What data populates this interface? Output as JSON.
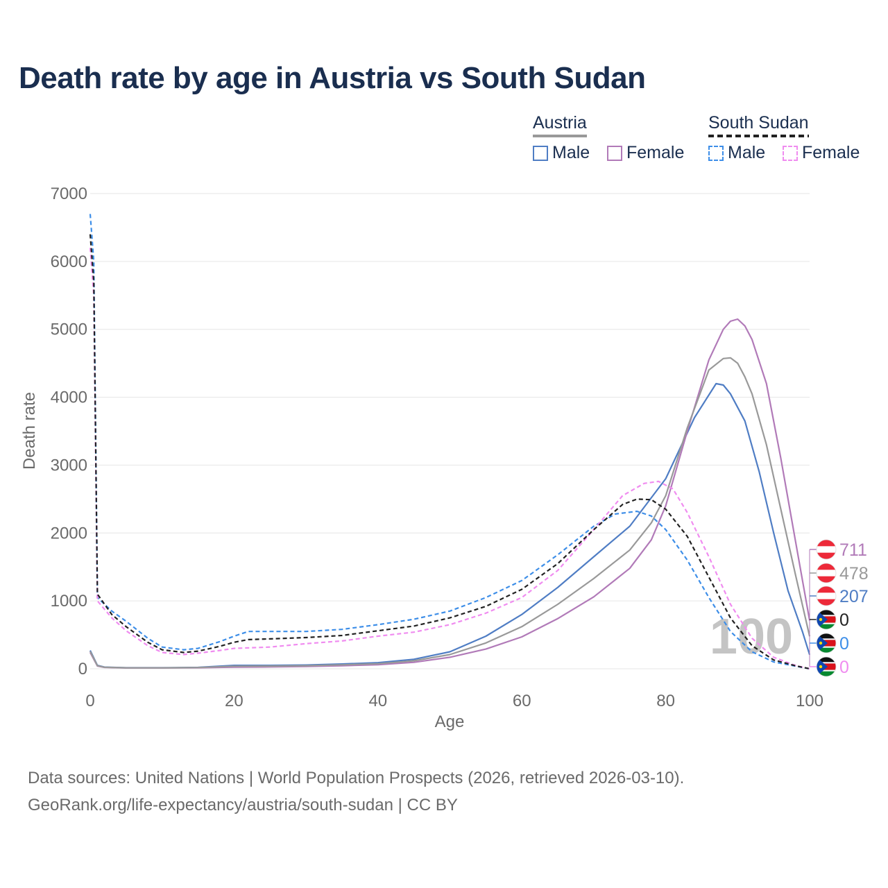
{
  "title": "Death rate by age in Austria vs South Sudan",
  "legend": {
    "austria_title": "Austria",
    "south_sudan_title": "South Sudan",
    "male_label": "Male",
    "female_label": "Female"
  },
  "watermark_year": "100",
  "end_labels": [
    "711",
    "478",
    "207",
    "0",
    "0",
    "0"
  ],
  "source": {
    "line1": "Data sources: United Nations | World Population Prospects (2026, retrieved 2026-03-10).",
    "line2": "GeoRank.org/life-expectancy/austria/south-sudan | CC BY"
  },
  "colors": {
    "male": "#4f7dc4",
    "female": "#b17ab8",
    "austria_total": "#999999",
    "ss_male": "#3d8ee8",
    "ss_female": "#f08cf0",
    "ss_total": "#222222",
    "title": "#1a2e4f"
  },
  "chart_data": {
    "type": "line",
    "title": "Death rate by age in Austria vs South Sudan",
    "xlabel": "Age",
    "ylabel": "Death rate",
    "xlim": [
      0,
      100
    ],
    "ylim": [
      0,
      7000
    ],
    "xticks": [
      0,
      20,
      40,
      60,
      80,
      100
    ],
    "yticks": [
      0,
      1000,
      2000,
      3000,
      4000,
      5000,
      6000,
      7000
    ],
    "grid": true,
    "series": [
      {
        "name": "Austria Male",
        "style": "solid",
        "color_key": "male",
        "points": [
          [
            0,
            270
          ],
          [
            1,
            50
          ],
          [
            2,
            25
          ],
          [
            5,
            15
          ],
          [
            10,
            15
          ],
          [
            15,
            20
          ],
          [
            20,
            50
          ],
          [
            25,
            50
          ],
          [
            30,
            55
          ],
          [
            35,
            70
          ],
          [
            40,
            90
          ],
          [
            45,
            140
          ],
          [
            50,
            250
          ],
          [
            55,
            480
          ],
          [
            60,
            800
          ],
          [
            65,
            1200
          ],
          [
            70,
            1650
          ],
          [
            75,
            2100
          ],
          [
            80,
            2800
          ],
          [
            84,
            3700
          ],
          [
            87,
            4200
          ],
          [
            88,
            4180
          ],
          [
            89,
            4050
          ],
          [
            91,
            3650
          ],
          [
            93,
            2900
          ],
          [
            95,
            2000
          ],
          [
            97,
            1150
          ],
          [
            99,
            550
          ],
          [
            100,
            207
          ]
        ]
      },
      {
        "name": "Austria Female",
        "style": "solid",
        "color_key": "female",
        "points": [
          [
            0,
            240
          ],
          [
            1,
            40
          ],
          [
            2,
            20
          ],
          [
            5,
            12
          ],
          [
            10,
            12
          ],
          [
            15,
            15
          ],
          [
            20,
            25
          ],
          [
            25,
            28
          ],
          [
            30,
            35
          ],
          [
            35,
            45
          ],
          [
            40,
            60
          ],
          [
            45,
            95
          ],
          [
            50,
            170
          ],
          [
            55,
            290
          ],
          [
            60,
            470
          ],
          [
            65,
            740
          ],
          [
            70,
            1060
          ],
          [
            75,
            1480
          ],
          [
            78,
            1900
          ],
          [
            80,
            2400
          ],
          [
            83,
            3500
          ],
          [
            86,
            4550
          ],
          [
            88,
            5000
          ],
          [
            89,
            5120
          ],
          [
            90,
            5150
          ],
          [
            91,
            5050
          ],
          [
            92,
            4850
          ],
          [
            94,
            4200
          ],
          [
            96,
            3100
          ],
          [
            98,
            1900
          ],
          [
            100,
            711
          ]
        ]
      },
      {
        "name": "Austria Total",
        "style": "solid",
        "color_key": "austria_total",
        "points": [
          [
            0,
            255
          ],
          [
            1,
            45
          ],
          [
            2,
            22
          ],
          [
            5,
            14
          ],
          [
            10,
            13
          ],
          [
            15,
            18
          ],
          [
            20,
            38
          ],
          [
            25,
            40
          ],
          [
            30,
            45
          ],
          [
            35,
            58
          ],
          [
            40,
            75
          ],
          [
            45,
            118
          ],
          [
            50,
            210
          ],
          [
            55,
            380
          ],
          [
            60,
            620
          ],
          [
            65,
            950
          ],
          [
            70,
            1330
          ],
          [
            75,
            1750
          ],
          [
            78,
            2150
          ],
          [
            80,
            2550
          ],
          [
            83,
            3550
          ],
          [
            86,
            4400
          ],
          [
            88,
            4570
          ],
          [
            89,
            4580
          ],
          [
            90,
            4500
          ],
          [
            91,
            4300
          ],
          [
            92,
            4050
          ],
          [
            94,
            3300
          ],
          [
            96,
            2350
          ],
          [
            98,
            1400
          ],
          [
            100,
            478
          ]
        ]
      },
      {
        "name": "South Sudan Male",
        "style": "dashed",
        "color_key": "ss_male",
        "points": [
          [
            0,
            6700
          ],
          [
            0.5,
            6000
          ],
          [
            1,
            1050
          ],
          [
            3,
            850
          ],
          [
            5,
            700
          ],
          [
            8,
            450
          ],
          [
            10,
            320
          ],
          [
            13,
            280
          ],
          [
            15,
            300
          ],
          [
            18,
            400
          ],
          [
            20,
            480
          ],
          [
            22,
            550
          ],
          [
            25,
            550
          ],
          [
            30,
            550
          ],
          [
            35,
            580
          ],
          [
            40,
            650
          ],
          [
            45,
            730
          ],
          [
            50,
            850
          ],
          [
            55,
            1050
          ],
          [
            60,
            1300
          ],
          [
            65,
            1680
          ],
          [
            70,
            2100
          ],
          [
            73,
            2280
          ],
          [
            76,
            2320
          ],
          [
            78,
            2250
          ],
          [
            80,
            2050
          ],
          [
            83,
            1600
          ],
          [
            86,
            1050
          ],
          [
            89,
            550
          ],
          [
            92,
            250
          ],
          [
            95,
            100
          ],
          [
            98,
            40
          ],
          [
            100,
            0
          ]
        ]
      },
      {
        "name": "South Sudan Female",
        "style": "dashed",
        "color_key": "ss_female",
        "points": [
          [
            0,
            6200
          ],
          [
            0.5,
            5500
          ],
          [
            1,
            1000
          ],
          [
            3,
            750
          ],
          [
            5,
            560
          ],
          [
            8,
            340
          ],
          [
            10,
            240
          ],
          [
            13,
            210
          ],
          [
            15,
            230
          ],
          [
            18,
            270
          ],
          [
            20,
            300
          ],
          [
            25,
            320
          ],
          [
            30,
            370
          ],
          [
            35,
            410
          ],
          [
            40,
            480
          ],
          [
            45,
            540
          ],
          [
            50,
            650
          ],
          [
            55,
            820
          ],
          [
            60,
            1050
          ],
          [
            65,
            1450
          ],
          [
            70,
            2050
          ],
          [
            74,
            2550
          ],
          [
            77,
            2730
          ],
          [
            79,
            2760
          ],
          [
            81,
            2650
          ],
          [
            83,
            2300
          ],
          [
            86,
            1650
          ],
          [
            89,
            950
          ],
          [
            92,
            450
          ],
          [
            95,
            170
          ],
          [
            98,
            50
          ],
          [
            100,
            0
          ]
        ]
      },
      {
        "name": "South Sudan Total",
        "style": "dashed",
        "color_key": "ss_total",
        "points": [
          [
            0,
            6400
          ],
          [
            0.5,
            5700
          ],
          [
            1,
            1100
          ],
          [
            3,
            800
          ],
          [
            5,
            620
          ],
          [
            8,
            390
          ],
          [
            10,
            280
          ],
          [
            13,
            240
          ],
          [
            15,
            260
          ],
          [
            18,
            330
          ],
          [
            20,
            390
          ],
          [
            22,
            430
          ],
          [
            25,
            440
          ],
          [
            30,
            460
          ],
          [
            35,
            490
          ],
          [
            40,
            560
          ],
          [
            45,
            630
          ],
          [
            50,
            750
          ],
          [
            55,
            920
          ],
          [
            60,
            1170
          ],
          [
            65,
            1550
          ],
          [
            70,
            2050
          ],
          [
            74,
            2420
          ],
          [
            76,
            2500
          ],
          [
            78,
            2490
          ],
          [
            80,
            2350
          ],
          [
            83,
            1950
          ],
          [
            86,
            1350
          ],
          [
            89,
            750
          ],
          [
            92,
            340
          ],
          [
            95,
            130
          ],
          [
            98,
            45
          ],
          [
            100,
            0
          ]
        ]
      }
    ]
  }
}
